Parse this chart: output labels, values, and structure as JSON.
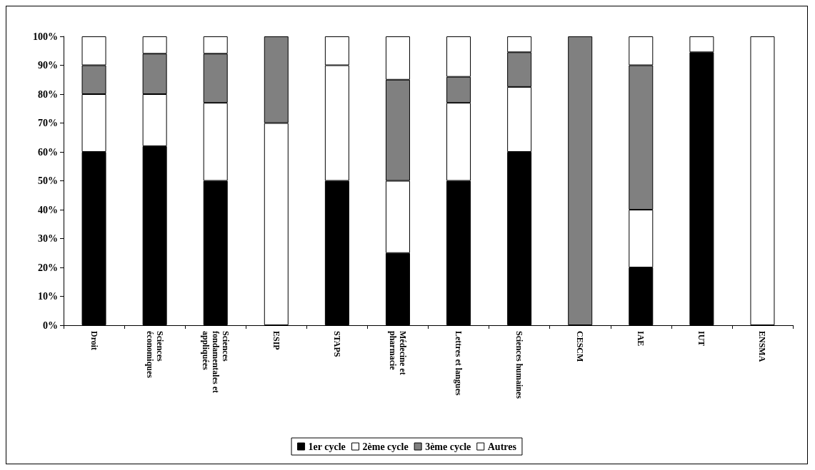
{
  "chart_data": {
    "type": "bar",
    "stacked": true,
    "categories": [
      "Droit",
      "Sciences économiques",
      "Sciences fondamentales et appliquées",
      "ESIP",
      "STAPS",
      "Médecine et pharmacie",
      "Lettres et langues",
      "Sciences humaines",
      "CESCM",
      "IAE",
      "IUT",
      "ENSMA"
    ],
    "series": [
      {
        "name": "1er cycle",
        "color": "#000000",
        "values": [
          60,
          62,
          50,
          0,
          50,
          25,
          50,
          60,
          0,
          20,
          94.5,
          0
        ]
      },
      {
        "name": "2ème cycle",
        "color": "#ffffff",
        "values": [
          20,
          18,
          27,
          70,
          40,
          25,
          27,
          22.5,
          0,
          20,
          0,
          0
        ]
      },
      {
        "name": "3ème cycle",
        "color": "#808080",
        "values": [
          10,
          14,
          17,
          30,
          0,
          35,
          9,
          12,
          100,
          50,
          0,
          0
        ]
      },
      {
        "name": "Autres",
        "color": "#ffffff",
        "values": [
          10,
          6,
          6,
          0,
          10,
          15,
          14,
          5.5,
          0,
          10,
          5.5,
          100
        ]
      }
    ],
    "ylim": [
      0,
      100
    ],
    "yticks": [
      {
        "value": 0,
        "label": "0%"
      },
      {
        "value": 10,
        "label": "10%"
      },
      {
        "value": 20,
        "label": "20%"
      },
      {
        "value": 30,
        "label": "30%"
      },
      {
        "value": 40,
        "label": "40%"
      },
      {
        "value": 50,
        "label": "50%"
      },
      {
        "value": 60,
        "label": "60%"
      },
      {
        "value": 70,
        "label": "70%"
      },
      {
        "value": 80,
        "label": "80%"
      },
      {
        "value": 90,
        "label": "90%"
      },
      {
        "value": 100,
        "label": "100%"
      }
    ],
    "grid": false,
    "legend": "bottom"
  }
}
